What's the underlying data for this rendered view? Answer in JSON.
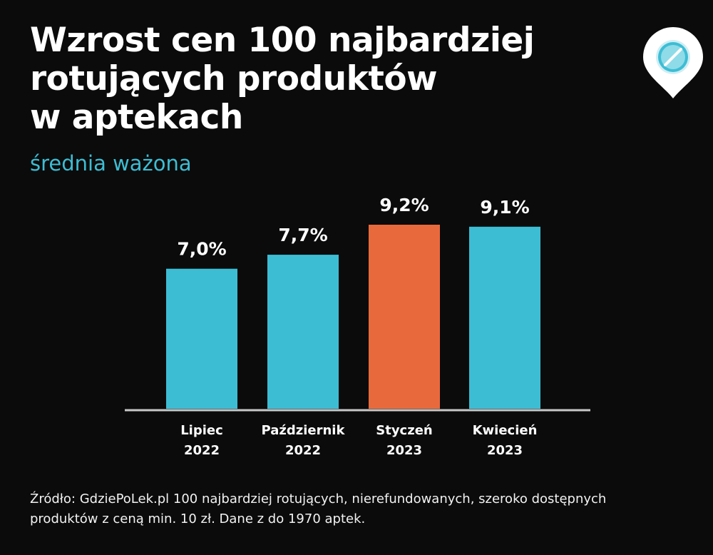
{
  "header": {
    "title_lines": [
      "Wzrost cen 100 najbardziej",
      "rotujących produktów",
      "w aptekach"
    ],
    "subtitle": "średnia ważona"
  },
  "logo": {
    "icon": "pill-location-pin-icon"
  },
  "colors": {
    "background": "#0b0b0b",
    "bar": "#3dbdd4",
    "highlight": "#e86a3c",
    "subtitle": "#3dbdd4",
    "axis": "#c8c8c8"
  },
  "chart_data": {
    "type": "bar",
    "categories": [
      [
        "Lipiec",
        "2022"
      ],
      [
        "Październik",
        "2022"
      ],
      [
        "Styczeń",
        "2023"
      ],
      [
        "Kwiecień",
        "2023"
      ]
    ],
    "values": [
      7.0,
      7.7,
      9.2,
      9.1
    ],
    "value_labels": [
      "7,0%",
      "7,7%",
      "9,2%",
      "9,1%"
    ],
    "highlight_index": 2,
    "ylim": [
      0,
      9.2
    ],
    "grid": false
  },
  "footer": {
    "source_lines": [
      "Źródło: GdziePoLek.pl 100 najbardziej rotujących, nierefundowanych, szeroko dostępnych",
      "produktów z ceną min. 10 zł. Dane z do 1970 aptek."
    ]
  }
}
